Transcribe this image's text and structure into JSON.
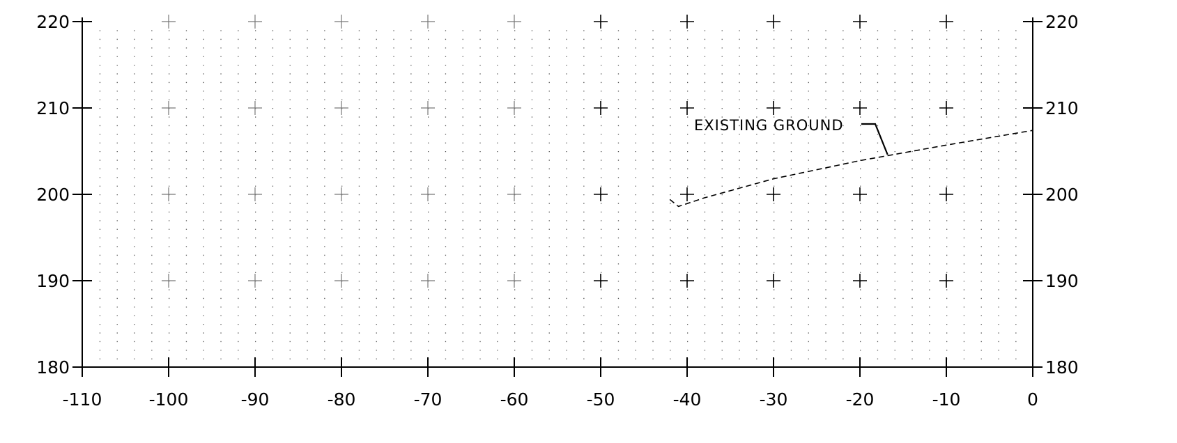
{
  "chart_data": {
    "type": "line",
    "title": "",
    "xlabel": "",
    "ylabel": "",
    "xlim": [
      -110,
      0
    ],
    "ylim": [
      180,
      220
    ],
    "x_ticks": [
      -110,
      -100,
      -90,
      -80,
      -70,
      -60,
      -50,
      -40,
      -30,
      -20,
      -10,
      0
    ],
    "x_tick_labels": [
      "-110",
      "-100",
      "-90",
      "-80",
      "-70",
      "-60",
      "-50",
      "-40",
      "-30",
      "-20",
      "-10",
      "0"
    ],
    "y_ticks": [
      180,
      190,
      200,
      210,
      220
    ],
    "y_tick_labels": [
      "180",
      "190",
      "200",
      "210",
      "220"
    ],
    "grid": "dotted",
    "series": [
      {
        "name": "EXISTING GROUND",
        "style": "dashed",
        "x": [
          -42,
          -41,
          -38,
          -30,
          -20,
          -10,
          0
        ],
        "y": [
          199.4,
          198.6,
          199.6,
          201.8,
          203.9,
          205.7,
          207.4
        ]
      }
    ],
    "annotations": [
      {
        "text": "EXISTING GROUND",
        "leader_to": {
          "x": -16.8,
          "y": 204.6
        }
      }
    ]
  }
}
